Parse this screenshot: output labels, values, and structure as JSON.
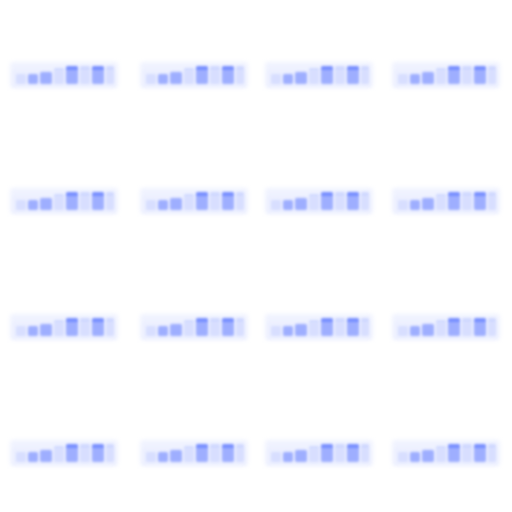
{
  "grid": {
    "rows": 4,
    "cols": 4,
    "colors": {
      "background": "#ffffff",
      "block_light": "#e7ebff",
      "block_mid": "#b7c4ff",
      "block_dark": "#4f6dff"
    }
  }
}
